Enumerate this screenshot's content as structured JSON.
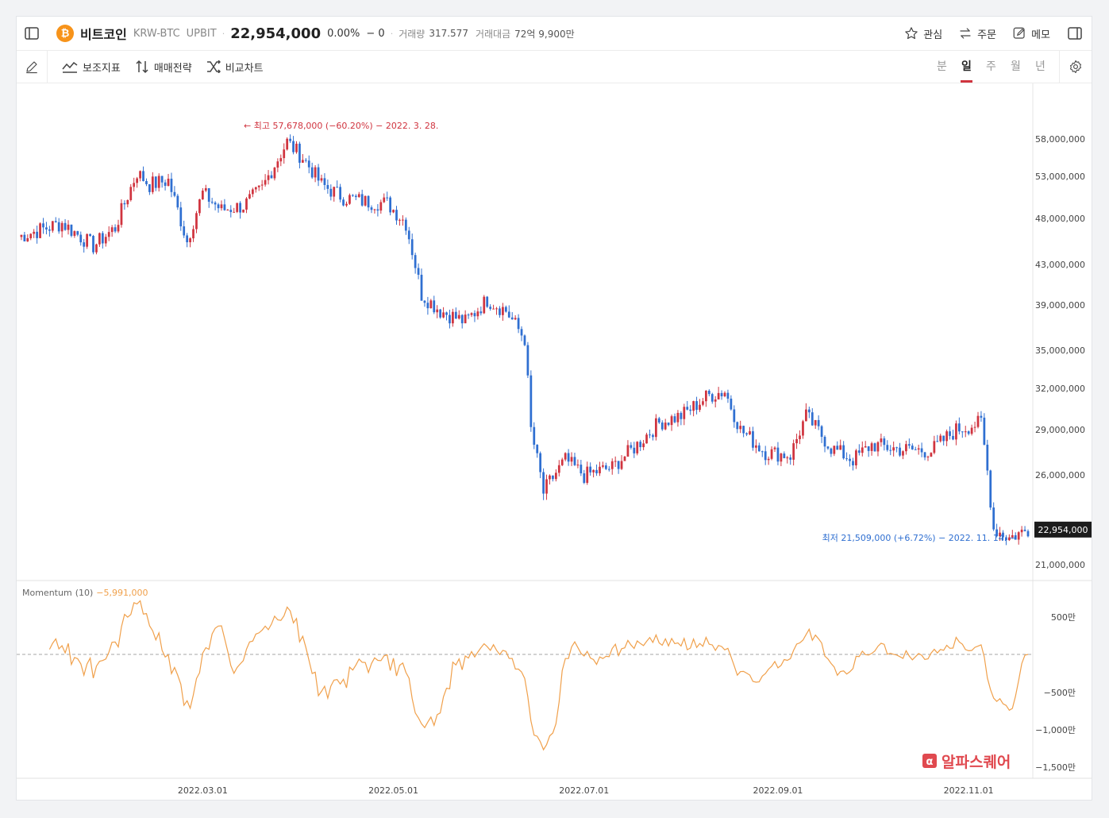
{
  "header": {
    "coin_logo": "₿",
    "coin_name": "비트코인",
    "pair": "KRW-BTC",
    "exchange": "UPBIT",
    "price": "22,954,000",
    "change_pct": "0.00%",
    "change_val": "− 0",
    "volume_label": "거래량",
    "volume_value": "317.577",
    "turnover_label": "거래대금",
    "turnover_value": "72억 9,900만",
    "watch_label": "관심",
    "order_label": "주문",
    "memo_label": "메모"
  },
  "toolbar": {
    "indicators_label": "보조지표",
    "strategy_label": "매매전략",
    "compare_label": "비교차트",
    "periods": [
      "분",
      "일",
      "주",
      "월",
      "년"
    ],
    "active_period": "일"
  },
  "chart_data": {
    "type": "candlestick",
    "price_axis_labels": [
      "58,000,000",
      "53,000,000",
      "48,000,000",
      "43,000,000",
      "39,000,000",
      "35,000,000",
      "32,000,000",
      "29,000,000",
      "26,000,000",
      "21,000,000"
    ],
    "price_axis_values": [
      58000000,
      53000000,
      48000000,
      43000000,
      39000000,
      35000000,
      32000000,
      29000000,
      26000000,
      21000000
    ],
    "date_axis_labels": [
      "2022.03.01",
      "2022.05.01",
      "2022.07.01",
      "2022.09.01",
      "2022.11.01"
    ],
    "current_price_label": "22,954,000",
    "current_price": 22954000,
    "high_annotation": "← 최고 57,678,000 (−60.20%) − 2022. 3. 28.",
    "low_annotation": "최저 21,509,000 (+6.72%) − 2022. 11. 14. →",
    "close_series": [
      {
        "date": "2022-01-01",
        "close": 46000000
      },
      {
        "date": "2022-01-15",
        "close": 47500000
      },
      {
        "date": "2022-01-25",
        "close": 45000000
      },
      {
        "date": "2022-02-01",
        "close": 47000000
      },
      {
        "date": "2022-02-08",
        "close": 53500000
      },
      {
        "date": "2022-02-12",
        "close": 52000000
      },
      {
        "date": "2022-02-18",
        "close": 52500000
      },
      {
        "date": "2022-02-24",
        "close": 45500000
      },
      {
        "date": "2022-03-01",
        "close": 51000000
      },
      {
        "date": "2022-03-07",
        "close": 49000000
      },
      {
        "date": "2022-03-14",
        "close": 49500000
      },
      {
        "date": "2022-03-20",
        "close": 51500000
      },
      {
        "date": "2022-03-28",
        "close": 57600000
      },
      {
        "date": "2022-04-02",
        "close": 55500000
      },
      {
        "date": "2022-04-08",
        "close": 52000000
      },
      {
        "date": "2022-04-15",
        "close": 50500000
      },
      {
        "date": "2022-04-22",
        "close": 50000000
      },
      {
        "date": "2022-04-29",
        "close": 49800000
      },
      {
        "date": "2022-05-05",
        "close": 47500000
      },
      {
        "date": "2022-05-10",
        "close": 40000000
      },
      {
        "date": "2022-05-16",
        "close": 38500000
      },
      {
        "date": "2022-05-24",
        "close": 37500000
      },
      {
        "date": "2022-05-31",
        "close": 39500000
      },
      {
        "date": "2022-06-06",
        "close": 38500000
      },
      {
        "date": "2022-06-12",
        "close": 36000000
      },
      {
        "date": "2022-06-14",
        "close": 29000000
      },
      {
        "date": "2022-06-18",
        "close": 25000000
      },
      {
        "date": "2022-06-25",
        "close": 27000000
      },
      {
        "date": "2022-07-01",
        "close": 26000000
      },
      {
        "date": "2022-07-10",
        "close": 26500000
      },
      {
        "date": "2022-07-18",
        "close": 28000000
      },
      {
        "date": "2022-07-25",
        "close": 29500000
      },
      {
        "date": "2022-08-01",
        "close": 30000000
      },
      {
        "date": "2022-08-10",
        "close": 31500000
      },
      {
        "date": "2022-08-15",
        "close": 31800000
      },
      {
        "date": "2022-08-20",
        "close": 29000000
      },
      {
        "date": "2022-08-28",
        "close": 27500000
      },
      {
        "date": "2022-09-05",
        "close": 27300000
      },
      {
        "date": "2022-09-10",
        "close": 30000000
      },
      {
        "date": "2022-09-18",
        "close": 27800000
      },
      {
        "date": "2022-09-25",
        "close": 27000000
      },
      {
        "date": "2022-10-01",
        "close": 28000000
      },
      {
        "date": "2022-10-10",
        "close": 27700000
      },
      {
        "date": "2022-10-20",
        "close": 27600000
      },
      {
        "date": "2022-10-28",
        "close": 29000000
      },
      {
        "date": "2022-11-05",
        "close": 29500000
      },
      {
        "date": "2022-11-09",
        "close": 23000000
      },
      {
        "date": "2022-11-14",
        "close": 22500000
      },
      {
        "date": "2022-11-20",
        "close": 22954000
      }
    ]
  },
  "momentum": {
    "label": "Momentum",
    "param": "(10)",
    "value": "−5,991,000",
    "axis_labels": [
      "500만",
      "−500만",
      "−1,000만",
      "−1,500만"
    ],
    "axis_values": [
      5000000,
      -5000000,
      -10000000,
      -15000000
    ]
  },
  "watermark": "알파스퀘어",
  "colors": {
    "up": "#d0343f",
    "down": "#2f6fd1",
    "momentum": "#f0a04b",
    "active_tab": "#d0343f",
    "price_tag_bg": "#1c1c1c"
  }
}
